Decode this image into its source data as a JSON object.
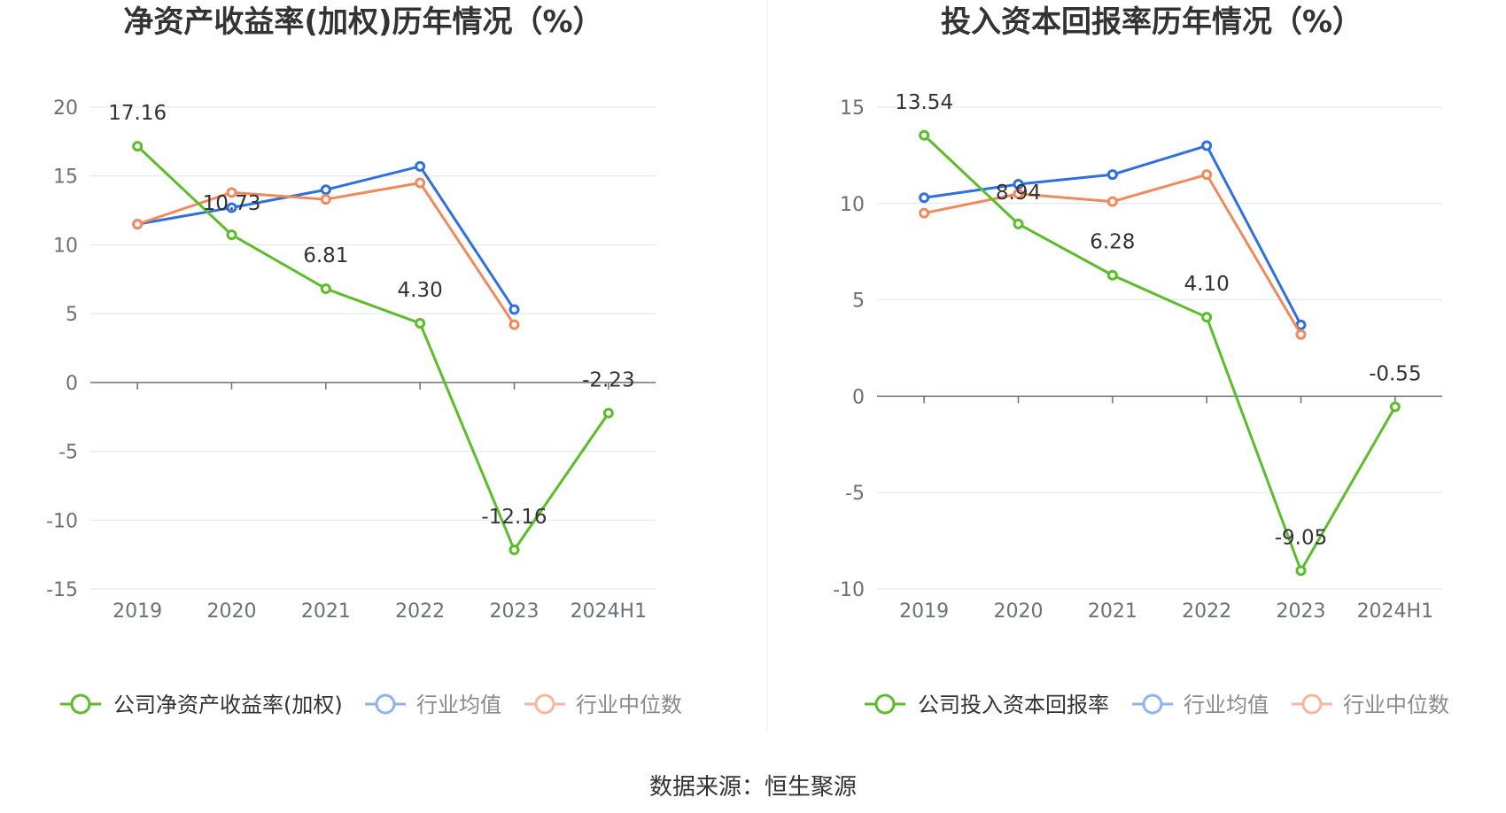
{
  "chart_data": [
    {
      "type": "line",
      "title": "净资产收益率(加权)历年情况（%）",
      "categories": [
        "2019",
        "2020",
        "2021",
        "2022",
        "2023",
        "2024H1"
      ],
      "ylim": [
        -15,
        20
      ],
      "yticks": [
        -15,
        -10,
        -5,
        0,
        5,
        10,
        15,
        20
      ],
      "grid": true,
      "legend_position": "bottom",
      "series": [
        {
          "name": "公司净资产收益率(加权)",
          "color": "#5cbd2b",
          "values": [
            17.16,
            10.73,
            6.81,
            4.3,
            -12.16,
            -2.23
          ],
          "labels": [
            "17.16",
            "10.73",
            "6.81",
            "4.30",
            "-12.16",
            "-2.23"
          ]
        },
        {
          "name": "行业均值",
          "color": "#2f6fde",
          "values": [
            11.5,
            12.7,
            14.0,
            15.7,
            5.3,
            null
          ]
        },
        {
          "name": "行业中位数",
          "color": "#f08a5d",
          "values": [
            11.5,
            13.8,
            13.3,
            14.5,
            4.2,
            null
          ]
        }
      ]
    },
    {
      "type": "line",
      "title": "投入资本回报率历年情况（%）",
      "categories": [
        "2019",
        "2020",
        "2021",
        "2022",
        "2023",
        "2024H1"
      ],
      "ylim": [
        -10,
        15
      ],
      "yticks": [
        -10,
        -5,
        0,
        5,
        10,
        15
      ],
      "grid": true,
      "legend_position": "bottom",
      "series": [
        {
          "name": "公司投入资本回报率",
          "color": "#5cbd2b",
          "values": [
            13.54,
            8.94,
            6.28,
            4.1,
            -9.05,
            -0.55
          ],
          "labels": [
            "13.54",
            "8.94",
            "6.28",
            "4.10",
            "-9.05",
            "-0.55"
          ]
        },
        {
          "name": "行业均值",
          "color": "#2f6fde",
          "values": [
            10.3,
            11.0,
            11.5,
            13.0,
            3.7,
            null
          ]
        },
        {
          "name": "行业中位数",
          "color": "#f08a5d",
          "values": [
            9.5,
            10.5,
            10.1,
            11.5,
            3.2,
            null
          ]
        }
      ]
    }
  ],
  "source_text": "数据来源：恒生聚源"
}
